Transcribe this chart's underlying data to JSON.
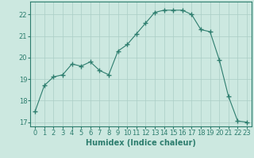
{
  "x": [
    0,
    1,
    2,
    3,
    4,
    5,
    6,
    7,
    8,
    9,
    10,
    11,
    12,
    13,
    14,
    15,
    16,
    17,
    18,
    19,
    20,
    21,
    22,
    23
  ],
  "y": [
    17.5,
    18.7,
    19.1,
    19.2,
    19.7,
    19.6,
    19.8,
    19.4,
    19.2,
    20.3,
    20.6,
    21.1,
    21.6,
    22.1,
    22.2,
    22.2,
    22.2,
    22.0,
    21.3,
    21.2,
    19.9,
    18.2,
    17.05,
    17.0
  ],
  "line_color": "#2d7d6e",
  "marker": "+",
  "marker_size": 4,
  "bg_color": "#cce8e0",
  "grid_color": "#aacec6",
  "xlabel": "Humidex (Indice chaleur)",
  "ylim": [
    16.8,
    22.6
  ],
  "xlim": [
    -0.5,
    23.5
  ],
  "yticks": [
    17,
    18,
    19,
    20,
    21,
    22
  ],
  "xticks": [
    0,
    1,
    2,
    3,
    4,
    5,
    6,
    7,
    8,
    9,
    10,
    11,
    12,
    13,
    14,
    15,
    16,
    17,
    18,
    19,
    20,
    21,
    22,
    23
  ],
  "tick_color": "#2d7d6e",
  "label_fontsize": 7,
  "tick_fontsize": 6
}
